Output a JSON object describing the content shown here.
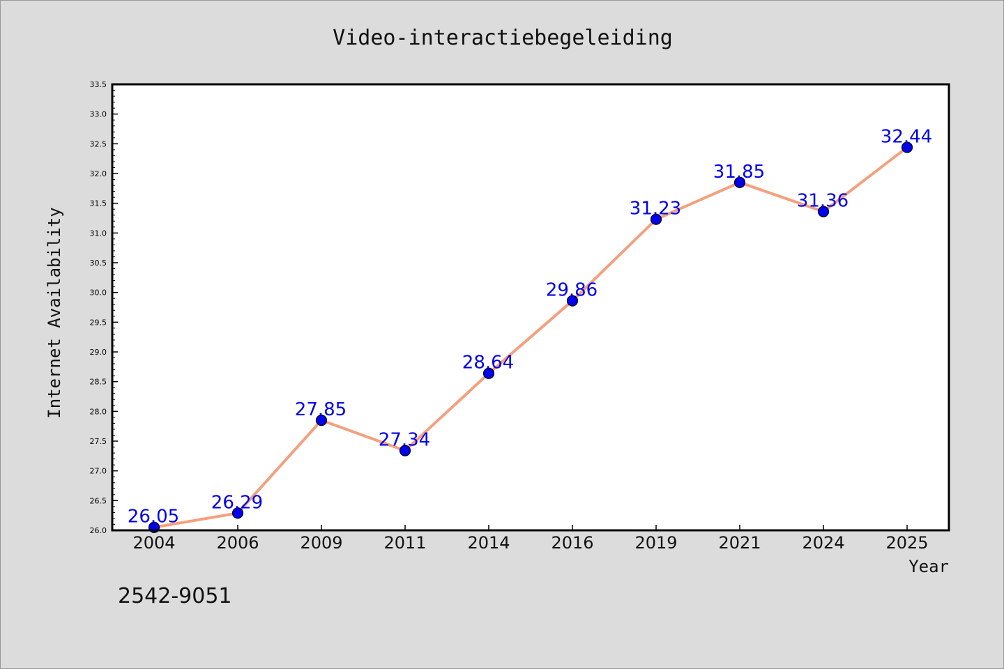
{
  "chart_data": {
    "type": "line",
    "title": "Video-interactiebegeleiding",
    "xlabel": "Year",
    "ylabel": "Internet Availability",
    "categories": [
      "2004",
      "2006",
      "2009",
      "2011",
      "2014",
      "2016",
      "2019",
      "2021",
      "2024",
      "2025"
    ],
    "values": [
      26.05,
      26.29,
      27.85,
      27.34,
      28.64,
      29.86,
      31.23,
      31.85,
      31.36,
      32.44
    ],
    "data_labels": [
      "26.05",
      "26.29",
      "27.85",
      "27.34",
      "28.64",
      "29.86",
      "31.23",
      "31.85",
      "31.36",
      "32.44"
    ],
    "ylim": [
      26.0,
      33.5
    ],
    "yticks": [
      "26.0",
      "26.5",
      "27.0",
      "27.5",
      "28.0",
      "28.5",
      "29.0",
      "29.5",
      "30.0",
      "30.5",
      "31.0",
      "31.5",
      "32.0",
      "32.5",
      "33.0",
      "33.5"
    ],
    "grid": false,
    "legend": "none",
    "line_color": "#f4a07e",
    "marker_color": "#0000ee",
    "label_color": "#0000ee",
    "background_color": "#dcdcdc",
    "plot_background_color": "#ffffff"
  },
  "footer": {
    "code": "2542-9051"
  }
}
